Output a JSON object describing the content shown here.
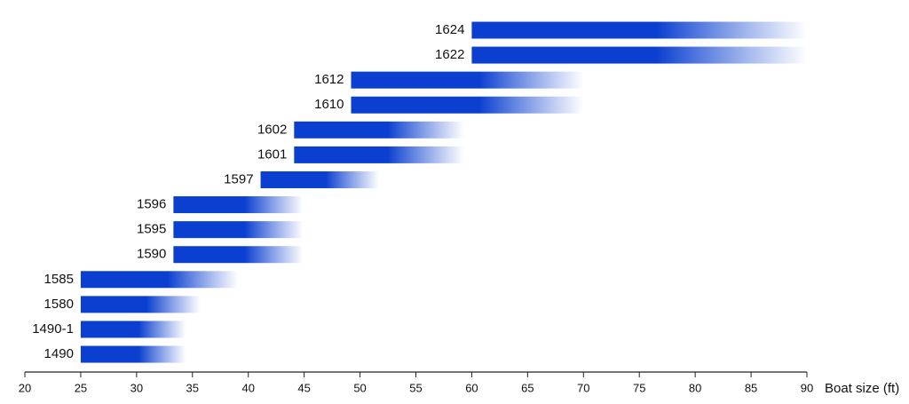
{
  "chart_data": {
    "type": "range-bar",
    "categories": [
      "1624",
      "1622",
      "1612",
      "1610",
      "1602",
      "1601",
      "1597",
      "1596",
      "1595",
      "1590",
      "1585",
      "1580",
      "1490-1",
      "1490"
    ],
    "start": [
      60,
      60,
      49.2,
      49.2,
      44.1,
      44.1,
      41.1,
      33.3,
      33.3,
      33.3,
      25,
      25,
      25,
      25
    ],
    "end": [
      90,
      90,
      70,
      70,
      59.3,
      59.3,
      51.7,
      44.9,
      44.9,
      44.9,
      39.1,
      35.7,
      34.4,
      34.4
    ],
    "color": "#0a3fd0",
    "xlabel": "Boat size (ft)",
    "xlim": [
      20,
      90
    ],
    "xticks": [
      20,
      25,
      30,
      35,
      40,
      45,
      50,
      55,
      60,
      65,
      70,
      75,
      80,
      85,
      90
    ]
  }
}
